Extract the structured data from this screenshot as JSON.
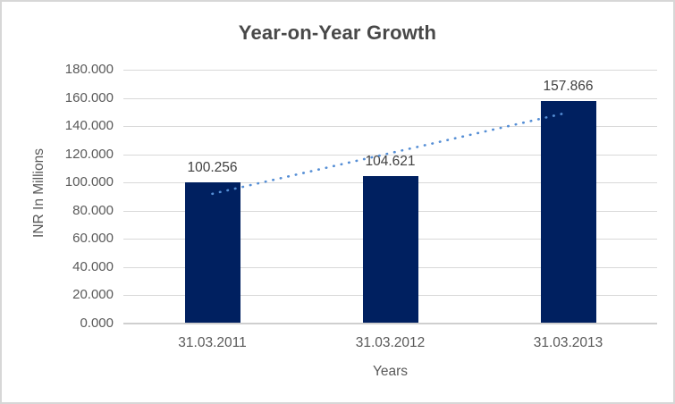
{
  "chart_data": {
    "type": "bar",
    "title": "Year-on-Year Growth",
    "xlabel": "Years",
    "ylabel": "INR In Millions",
    "categories": [
      "31.03.2011",
      "31.03.2012",
      "31.03.2013"
    ],
    "values": [
      100.256,
      104.621,
      157.866
    ],
    "data_labels": [
      "100.256",
      "104.621",
      "157.866"
    ],
    "ylim": [
      0,
      180
    ],
    "ytick_step": 20,
    "ytick_labels": [
      "0.000",
      "20.000",
      "40.000",
      "60.000",
      "80.000",
      "100.000",
      "120.000",
      "140.000",
      "160.000",
      "180.000"
    ],
    "grid": true,
    "legend": "none",
    "bar_color": "#002060",
    "trendline": {
      "type": "linear",
      "style": "dotted",
      "color": "#558ED5",
      "start_value": 92.0,
      "end_value": 149.7
    },
    "colors": {
      "title_text": "#484848",
      "axis_text": "#595959",
      "data_label_text": "#404040",
      "gridline": "#D9D9D9",
      "axis_line": "#CFCFCF",
      "chart_border": "#D7D7D7",
      "background": "#FFFFFF"
    }
  }
}
